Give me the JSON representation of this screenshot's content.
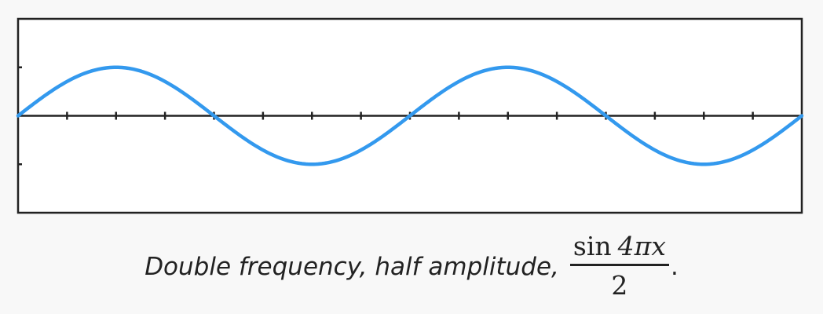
{
  "chart_data": {
    "type": "line",
    "function": "sin(4*pi*x)/2",
    "xlim": [
      0,
      1
    ],
    "ylim": [
      -1,
      1
    ],
    "x": [
      0,
      0.0625,
      0.125,
      0.1875,
      0.25,
      0.3125,
      0.375,
      0.4375,
      0.5,
      0.5625,
      0.625,
      0.6875,
      0.75,
      0.8125,
      0.875,
      0.9375,
      1
    ],
    "series": [
      {
        "values": [
          0,
          0.354,
          0.5,
          0.354,
          0,
          -0.354,
          -0.5,
          -0.354,
          0,
          0.354,
          0.5,
          0.354,
          0,
          -0.354,
          -0.5,
          -0.354,
          0
        ],
        "color": "#3399ee"
      }
    ],
    "x_ticks": [
      0.0625,
      0.125,
      0.1875,
      0.25,
      0.3125,
      0.375,
      0.4375,
      0.5,
      0.5625,
      0.625,
      0.6875,
      0.75,
      0.8125,
      0.875,
      0.9375
    ],
    "y_ticks": [
      0.5,
      -0.5
    ],
    "grid": false,
    "axis_color": "#222222"
  },
  "caption": {
    "text": "Double frequency, half amplitude,",
    "fraction": {
      "numerator_fn": "sin",
      "numerator_arg": "4πx",
      "denominator": "2"
    },
    "end": "."
  }
}
